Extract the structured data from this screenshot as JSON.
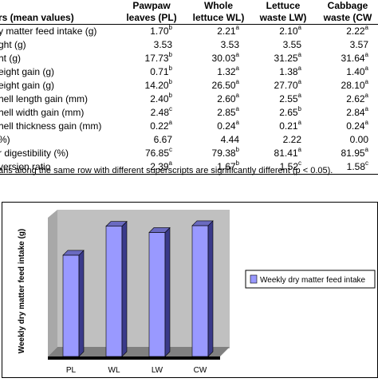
{
  "table": {
    "headers": [
      {
        "line1": "",
        "line2": "rs (mean values)"
      },
      {
        "line1": "Pawpaw",
        "line2": "leaves (PL)"
      },
      {
        "line1": "Whole",
        "line2": "lettuce WL)"
      },
      {
        "line1": "Lettuce",
        "line2": "waste LW)"
      },
      {
        "line1": "Cabbage",
        "line2": "waste (CW"
      }
    ],
    "rows": [
      {
        "label": "y matter feed intake (g)",
        "cells": [
          {
            "v": "1.70",
            "s": "b"
          },
          {
            "v": "2.21",
            "s": "a"
          },
          {
            "v": "2.10",
            "s": "a"
          },
          {
            "v": "2.22",
            "s": "a"
          }
        ]
      },
      {
        "label": "ght (g)",
        "cells": [
          {
            "v": "3.53",
            "s": ""
          },
          {
            "v": "3.53",
            "s": ""
          },
          {
            "v": "3.55",
            "s": ""
          },
          {
            "v": "3.57",
            "s": ""
          }
        ]
      },
      {
        "label": "ht (g)",
        "cells": [
          {
            "v": "17.73",
            "s": "b"
          },
          {
            "v": "30.03",
            "s": "a"
          },
          {
            "v": "31.25",
            "s": "a"
          },
          {
            "v": "31.64",
            "s": "a"
          }
        ]
      },
      {
        "label": "eight gain (g)",
        "cells": [
          {
            "v": "0.71",
            "s": "b"
          },
          {
            "v": "1.32",
            "s": "a"
          },
          {
            "v": "1.38",
            "s": "a"
          },
          {
            "v": "1.40",
            "s": "a"
          }
        ]
      },
      {
        "label": "eight gain (g)",
        "cells": [
          {
            "v": "14.20",
            "s": "b"
          },
          {
            "v": "26.50",
            "s": "a"
          },
          {
            "v": "27.70",
            "s": "a"
          },
          {
            "v": "28.10",
            "s": "a"
          }
        ]
      },
      {
        "label": "hell length gain (mm)",
        "cells": [
          {
            "v": "2.40",
            "s": "b"
          },
          {
            "v": "2.60",
            "s": "a"
          },
          {
            "v": "2.55",
            "s": "a"
          },
          {
            "v": "2.62",
            "s": "a"
          }
        ]
      },
      {
        "label": "hell width gain (mm)",
        "cells": [
          {
            "v": "2.48",
            "s": "c"
          },
          {
            "v": "2.85",
            "s": "a"
          },
          {
            "v": "2.65",
            "s": "b"
          },
          {
            "v": "2.84",
            "s": "a"
          }
        ]
      },
      {
        "label": "hell thickness gain (mm)",
        "cells": [
          {
            "v": "0.22",
            "s": "a"
          },
          {
            "v": "0.24",
            "s": "a"
          },
          {
            "v": "0.21",
            "s": "a"
          },
          {
            "v": "0.24",
            "s": "a"
          }
        ]
      },
      {
        "label": "%)",
        "cells": [
          {
            "v": "6.67",
            "s": ""
          },
          {
            "v": "4.44",
            "s": ""
          },
          {
            "v": "2.22",
            "s": ""
          },
          {
            "v": "0.00",
            "s": ""
          }
        ]
      },
      {
        "label": "r digestibility (%)",
        "cells": [
          {
            "v": "76.85",
            "s": "c"
          },
          {
            "v": "79.38",
            "s": "b"
          },
          {
            "v": "81.41",
            "s": "a"
          },
          {
            "v": "81.95",
            "s": "a"
          }
        ]
      },
      {
        "label": "version ratio",
        "cells": [
          {
            "v": "2.39",
            "s": "a"
          },
          {
            "v": "1.67",
            "s": "b"
          },
          {
            "v": "1.52",
            "s": "c"
          },
          {
            "v": "1.58",
            "s": "c"
          }
        ]
      }
    ]
  },
  "footnote": "ans along the same row with different superscripts are significantly different (p < 0.05).",
  "chart_data": {
    "type": "bar",
    "categories": [
      "PL",
      "WL",
      "LW",
      "CW"
    ],
    "series": [
      {
        "name": "Weekly dry matter feed intake",
        "values": [
          1.7,
          2.21,
          2.1,
          2.22
        ]
      }
    ],
    "ylabel": "Weekly dry matter feed intake (g)",
    "xlabel": "",
    "ylim": [
      0,
      2.5
    ],
    "grid": false,
    "legend": "right",
    "bar_color": "#9999ff",
    "bar_side_color": "#3a3a8a",
    "bar_top_color": "#6a6ac0",
    "wall_color": "#c0c0c0",
    "floor_color": "#808080"
  }
}
